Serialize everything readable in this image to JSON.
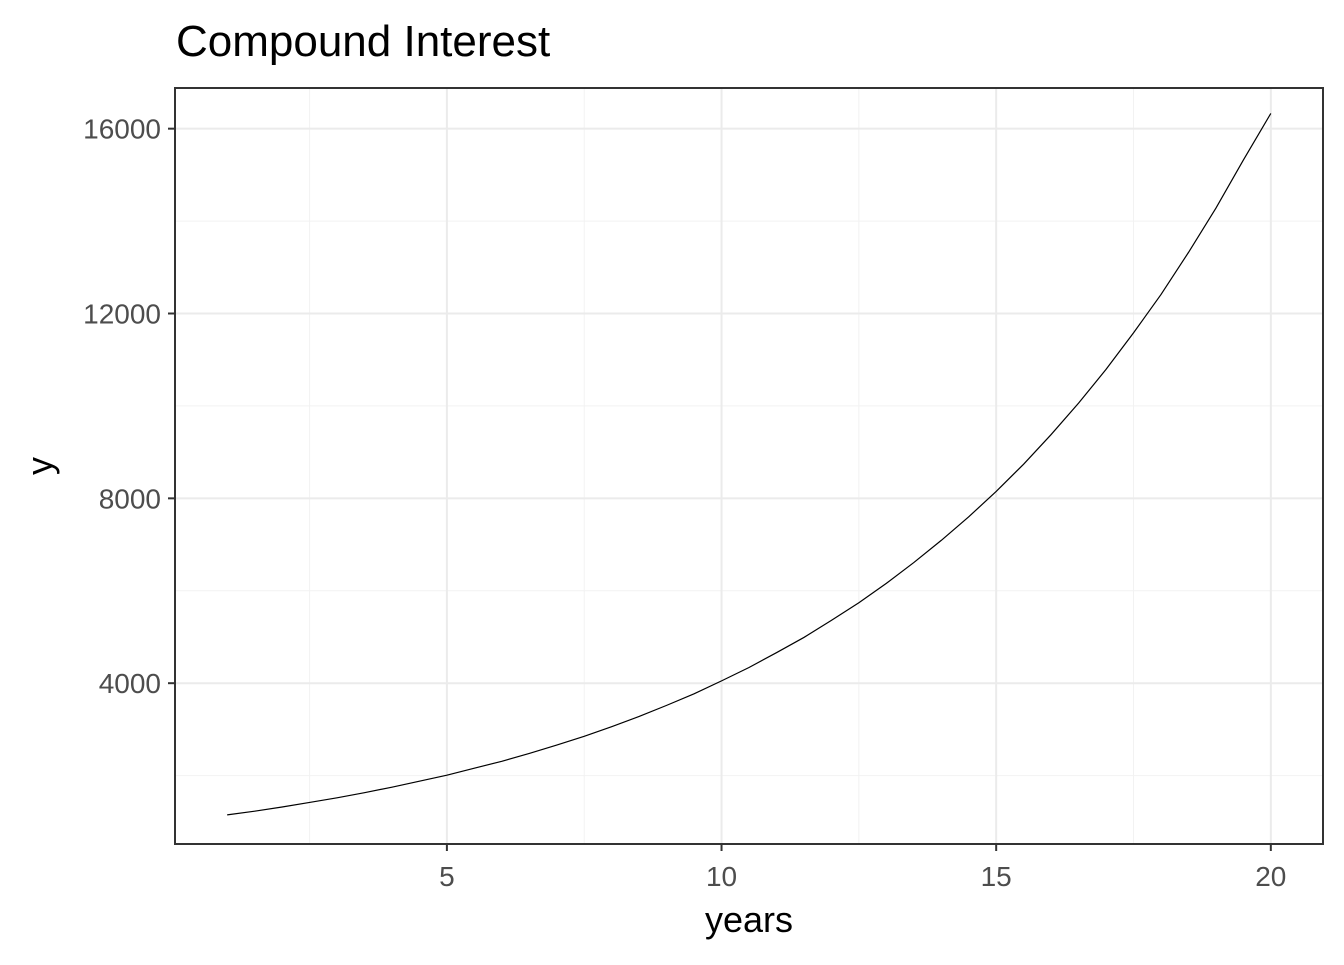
{
  "chart_data": {
    "type": "line",
    "title": "Compound Interest",
    "xlabel": "years",
    "ylabel": "y",
    "xlim": [
      0.05,
      20.95
    ],
    "ylim": [
      520,
      16880
    ],
    "x_ticks": [
      5,
      10,
      15,
      20
    ],
    "y_ticks": [
      4000,
      8000,
      12000,
      16000
    ],
    "x_tick_labels": [
      "5",
      "10",
      "15",
      "20"
    ],
    "y_tick_labels": [
      "4000",
      "8000",
      "12000",
      "16000"
    ],
    "x_minor_ticks": [
      2.5,
      7.5,
      12.5,
      17.5
    ],
    "y_minor_ticks": [
      2000,
      6000,
      10000,
      14000
    ],
    "grid": true,
    "legend": "none",
    "series": [
      {
        "color": "#000000",
        "points": [
          [
            1,
            1150
          ],
          [
            1.5,
            1230
          ],
          [
            2,
            1320
          ],
          [
            2.5,
            1420
          ],
          [
            3,
            1520
          ],
          [
            3.5,
            1630
          ],
          [
            4,
            1750
          ],
          [
            4.5,
            1880
          ],
          [
            5,
            2010
          ],
          [
            5.5,
            2160
          ],
          [
            6,
            2310
          ],
          [
            6.5,
            2480
          ],
          [
            7,
            2660
          ],
          [
            7.5,
            2850
          ],
          [
            8,
            3060
          ],
          [
            8.5,
            3280
          ],
          [
            9,
            3520
          ],
          [
            9.5,
            3770
          ],
          [
            10,
            4050
          ],
          [
            10.5,
            4340
          ],
          [
            11,
            4660
          ],
          [
            11.5,
            4990
          ],
          [
            12,
            5360
          ],
          [
            12.5,
            5740
          ],
          [
            13,
            6160
          ],
          [
            13.5,
            6610
          ],
          [
            14,
            7090
          ],
          [
            14.5,
            7600
          ],
          [
            15,
            8150
          ],
          [
            15.5,
            8740
          ],
          [
            16,
            9380
          ],
          [
            16.5,
            10060
          ],
          [
            17,
            10790
          ],
          [
            17.5,
            11580
          ],
          [
            18,
            12410
          ],
          [
            18.5,
            13320
          ],
          [
            19,
            14280
          ],
          [
            19.5,
            15320
          ],
          [
            20,
            16330
          ]
        ]
      }
    ]
  }
}
